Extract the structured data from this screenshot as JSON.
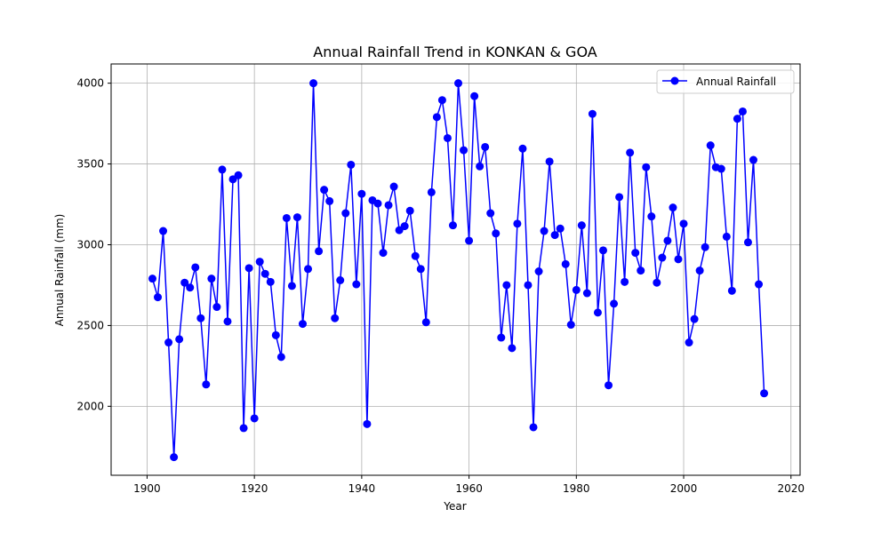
{
  "chart_data": {
    "type": "line",
    "title": "Annual Rainfall Trend in KONKAN & GOA",
    "xlabel": "Year",
    "ylabel": "Annual Rainfall (mm)",
    "xlim": [
      1893.3,
      2021.7
    ],
    "ylim": [
      1573,
      4119
    ],
    "xticks": [
      1900,
      1920,
      1940,
      1960,
      1980,
      2000,
      2020
    ],
    "yticks": [
      2000,
      2500,
      3000,
      3500,
      4000
    ],
    "grid": true,
    "legend_position": "top-right",
    "colors": {
      "line": "#0000ff",
      "grid": "#b0b0b0",
      "frame": "#000000"
    },
    "series": [
      {
        "name": "Annual Rainfall",
        "marker": "circle",
        "x": [
          1901,
          1902,
          1903,
          1904,
          1905,
          1906,
          1907,
          1908,
          1909,
          1910,
          1911,
          1912,
          1913,
          1914,
          1915,
          1916,
          1917,
          1918,
          1919,
          1920,
          1921,
          1922,
          1923,
          1924,
          1925,
          1926,
          1927,
          1928,
          1929,
          1930,
          1931,
          1932,
          1933,
          1934,
          1935,
          1936,
          1937,
          1938,
          1939,
          1940,
          1941,
          1942,
          1943,
          1944,
          1945,
          1946,
          1947,
          1948,
          1949,
          1950,
          1951,
          1952,
          1953,
          1954,
          1955,
          1956,
          1957,
          1958,
          1959,
          1960,
          1961,
          1962,
          1963,
          1964,
          1965,
          1966,
          1967,
          1968,
          1969,
          1970,
          1971,
          1972,
          1973,
          1974,
          1975,
          1976,
          1977,
          1978,
          1979,
          1980,
          1981,
          1982,
          1983,
          1984,
          1985,
          1986,
          1987,
          1988,
          1989,
          1990,
          1991,
          1992,
          1993,
          1994,
          1995,
          1996,
          1997,
          1998,
          1999,
          2000,
          2001,
          2002,
          2003,
          2004,
          2005,
          2006,
          2007,
          2008,
          2009,
          2010,
          2011,
          2012,
          2013,
          2014,
          2015
        ],
        "values": [
          2790,
          2675,
          3085,
          2395,
          1685,
          2415,
          2765,
          2735,
          2860,
          2545,
          2135,
          2790,
          2615,
          3465,
          2525,
          3405,
          3430,
          1865,
          2855,
          1925,
          2895,
          2820,
          2770,
          2440,
          2305,
          3165,
          2745,
          3170,
          2510,
          2850,
          4000,
          2960,
          3340,
          3270,
          2545,
          2780,
          3195,
          3495,
          2755,
          3315,
          1890,
          3275,
          3255,
          2950,
          3245,
          3360,
          3090,
          3115,
          3210,
          2930,
          2850,
          2520,
          3325,
          3790,
          3895,
          3660,
          3120,
          4000,
          3585,
          3025,
          3920,
          3485,
          3605,
          3195,
          3070,
          2425,
          2750,
          2360,
          3130,
          3595,
          2750,
          1870,
          2835,
          3085,
          3515,
          3060,
          3100,
          2880,
          2505,
          2720,
          3120,
          2700,
          3810,
          2580,
          2965,
          2130,
          2635,
          3295,
          2770,
          3570,
          2950,
          2840,
          3480,
          3175,
          2765,
          2920,
          3025,
          3230,
          2910,
          3130,
          2395,
          2540,
          2840,
          2985,
          3615,
          3480,
          3470,
          3050,
          2715,
          3780,
          3825,
          3015,
          3525,
          2755,
          2080
        ]
      }
    ]
  }
}
